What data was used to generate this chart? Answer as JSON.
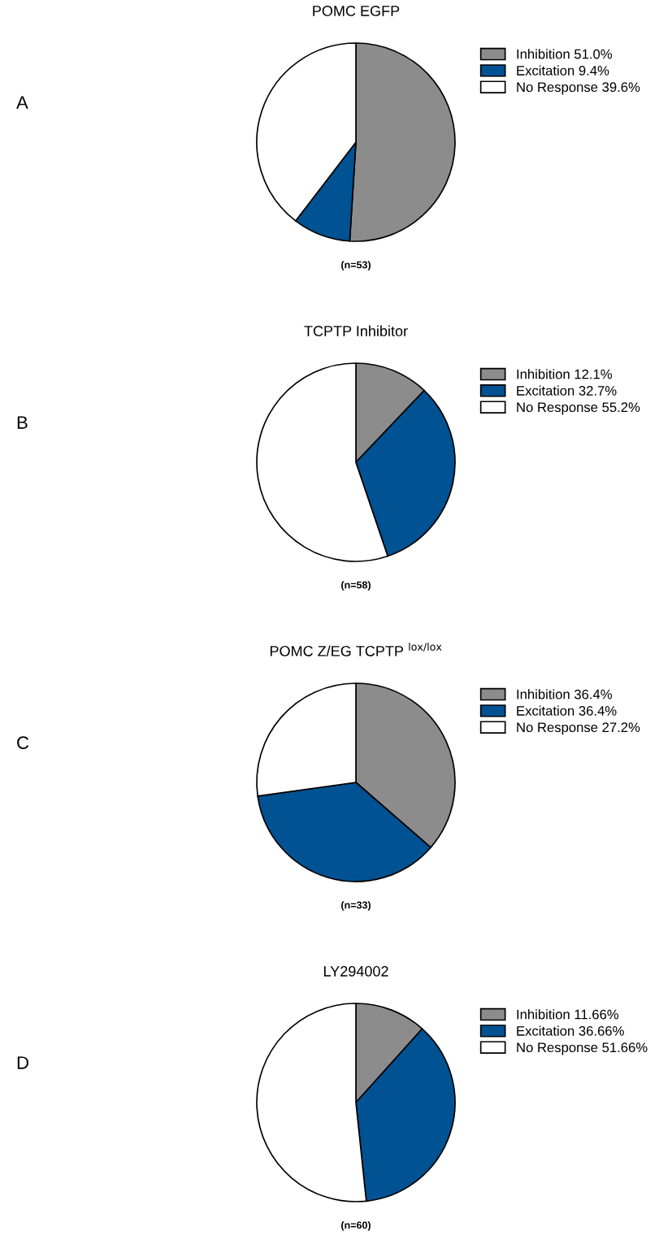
{
  "chart_data": [
    {
      "type": "pie",
      "title": "POMC EGFP",
      "categories": [
        "Inhibition 51.0%",
        "Excitation 9.4%",
        "No Response 39.6%"
      ],
      "values": [
        51.0,
        9.4,
        39.6
      ],
      "colors": [
        "#8c8c8c",
        "#005293",
        "#ffffff"
      ],
      "legend": "right",
      "annotations": [
        "A",
        "(n=53)"
      ]
    },
    {
      "type": "pie",
      "title": "TCPTP Inhibitor",
      "categories": [
        "Inhibition 12.1%",
        "Excitation 32.7%",
        "No Response 55.2%"
      ],
      "values": [
        12.1,
        32.7,
        55.2
      ],
      "colors": [
        "#8c8c8c",
        "#005293",
        "#ffffff"
      ],
      "legend": "right",
      "annotations": [
        "B",
        "(n=58)"
      ]
    },
    {
      "type": "pie",
      "title": "POMC Z/EG TCPTP $^{lox/lox}$",
      "categories": [
        "Inhibition 36.4%",
        "Excitation 36.4%",
        "No Response 27.2%"
      ],
      "values": [
        36.4,
        36.4,
        27.2
      ],
      "colors": [
        "#8c8c8c",
        "#005293",
        "#ffffff"
      ],
      "legend": "right",
      "annotations": [
        "C",
        "(n=33)"
      ]
    },
    {
      "type": "pie",
      "title": "LY294002",
      "categories": [
        "Inhibition 11.66%",
        "Excitation 36.66%",
        "No Response 51.66%"
      ],
      "values": [
        11.66,
        36.66,
        51.66
      ],
      "colors": [
        "#8c8c8c",
        "#005293",
        "#ffffff"
      ],
      "legend": "right",
      "annotations": [
        "D",
        "(n=60)"
      ]
    }
  ]
}
